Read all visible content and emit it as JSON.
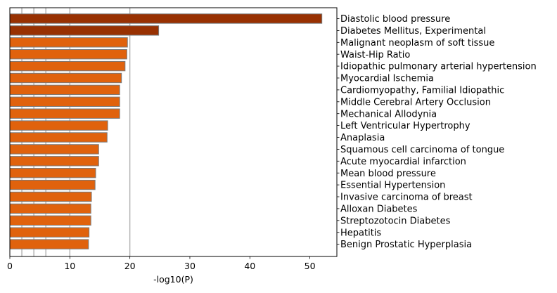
{
  "chart_data": {
    "type": "bar",
    "orientation": "horizontal",
    "title": "",
    "xlabel": "-log10(P)",
    "ylabel": "",
    "xlim": [
      0,
      54.5
    ],
    "x_ticks": [
      0,
      10,
      20,
      30,
      40,
      50
    ],
    "reference_lines": [
      2,
      4,
      6,
      10,
      20
    ],
    "categories": [
      "Diastolic blood pressure",
      "Diabetes Mellitus, Experimental",
      "Malignant neoplasm of soft tissue",
      "Waist-Hip Ratio",
      "Idiopathic pulmonary arterial hypertension",
      "Myocardial Ischemia",
      "Cardiomyopathy, Familial Idiopathic",
      "Middle Cerebral Artery Occlusion",
      "Mechanical Allodynia",
      "Left Ventricular Hypertrophy",
      "Anaplasia",
      "Squamous cell carcinoma of tongue",
      "Acute myocardial infarction",
      "Mean blood pressure",
      "Essential Hypertension",
      "Invasive carcinoma of breast",
      "Alloxan Diabetes",
      "Streptozotocin Diabetes",
      "Hepatitis",
      "Benign Prostatic Hyperplasia"
    ],
    "values": [
      52.0,
      24.8,
      19.6,
      19.5,
      19.2,
      18.6,
      18.3,
      18.3,
      18.3,
      16.3,
      16.2,
      14.8,
      14.8,
      14.3,
      14.2,
      13.6,
      13.5,
      13.5,
      13.2,
      13.1
    ],
    "colors": [
      "#983102",
      "#983102",
      "#e0620d",
      "#e0620d",
      "#e0620d",
      "#e0620d",
      "#e0620d",
      "#e0620d",
      "#e0620d",
      "#e0620d",
      "#e0620d",
      "#e0620d",
      "#e0620d",
      "#e0620d",
      "#e0620d",
      "#e0620d",
      "#e0620d",
      "#e0620d",
      "#e0620d",
      "#e0620d"
    ],
    "bar_edge_color": "#7a7a7a",
    "grid": false,
    "legend": "none"
  }
}
